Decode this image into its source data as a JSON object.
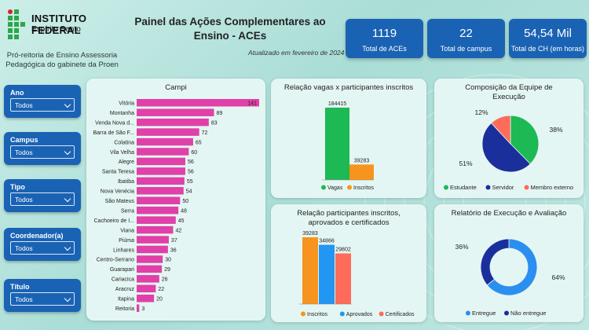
{
  "header": {
    "logo_line1": "INSTITUTO FEDERAL",
    "logo_line2": "Espírito Santo",
    "subtitle": "Pró-reitoria de Ensino Assessoria Pedagógica do gabinete da Proen",
    "title": "Painel das Ações Complementares ao Ensino - ACEs",
    "updated": "Atualizado em fevereiro de 2024"
  },
  "kpis": [
    {
      "value": "1119",
      "label": "Total de ACEs"
    },
    {
      "value": "22",
      "label": "Total de campus"
    },
    {
      "value": "54,54 Mil",
      "label": "Total de CH (em horas)"
    }
  ],
  "filters": [
    {
      "label": "Ano",
      "value": "Todos"
    },
    {
      "label": "Campus",
      "value": "Todos"
    },
    {
      "label": "Tipo",
      "value": "Todos"
    },
    {
      "label": "Coordenador(a)",
      "value": "Todos"
    },
    {
      "label": "Título",
      "value": "Todos"
    }
  ],
  "colors": {
    "primary": "#1a63b4",
    "bar_pink": "#e040a8",
    "green": "#1db954",
    "orange": "#f7941d",
    "navy": "#1b2f9c",
    "blue": "#2196f3",
    "coral": "#ff6b5a",
    "light_blue": "#2b8ff0"
  },
  "chart_data": [
    {
      "type": "bar",
      "title": "Campi",
      "orientation": "horizontal",
      "categories": [
        "Vitória",
        "Montanha",
        "Venda Nova d...",
        "Barra de São F...",
        "Colatina",
        "Vila Velha",
        "Alegre",
        "Santa Teresa",
        "Ibatiba",
        "Nova Venécia",
        "São Mateus",
        "Serra",
        "Cachoeiro de I...",
        "Viana",
        "Piúma",
        "Linhares",
        "Centro-Serrano",
        "Guarapari",
        "Cariacica",
        "Aracruz",
        "Itapina",
        "Reitoria"
      ],
      "values": [
        141,
        89,
        83,
        72,
        65,
        60,
        56,
        56,
        55,
        54,
        50,
        48,
        45,
        42,
        37,
        36,
        30,
        29,
        26,
        22,
        20,
        3
      ],
      "xlim": [
        0,
        141
      ]
    },
    {
      "type": "bar",
      "title": "Relação vagas x participantes inscritos",
      "categories": [
        "Vagas",
        "Inscritos"
      ],
      "values": [
        184415,
        39283
      ],
      "legend": [
        "Vagas",
        "Inscritos"
      ],
      "ylim": [
        0,
        184415
      ]
    },
    {
      "type": "pie",
      "title": "Composição da Equipe de Execução",
      "categories": [
        "Estudante",
        "Servidor",
        "Membro externo"
      ],
      "values": [
        38,
        51,
        12
      ],
      "labels": [
        "38%",
        "51%",
        "12%"
      ]
    },
    {
      "type": "bar",
      "title": "Relação participantes inscritos, aprovados e certificados",
      "categories": [
        "Inscritos",
        "Aprovados",
        "Certificados"
      ],
      "values": [
        39283,
        34866,
        29802
      ],
      "legend": [
        "Inscritos",
        "Aprovados",
        "Certificados"
      ],
      "ylim": [
        0,
        39283
      ]
    },
    {
      "type": "pie",
      "title": "Relatório de Execução e Avaliação",
      "donut": true,
      "categories": [
        "Entregue",
        "Não entregue"
      ],
      "values": [
        64,
        36
      ],
      "labels": [
        "64%",
        "36%"
      ]
    }
  ]
}
